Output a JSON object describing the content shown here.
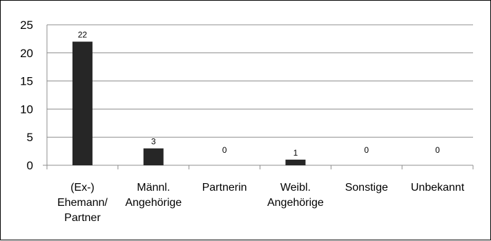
{
  "chart_data": {
    "type": "bar",
    "categories": [
      [
        "(Ex-)",
        "Ehemann/",
        "Partner"
      ],
      [
        "Männl.",
        "Angehörige"
      ],
      [
        "Partnerin"
      ],
      [
        "Weibl.",
        "Angehörige"
      ],
      [
        "Sonstige"
      ],
      [
        "Unbekannt"
      ]
    ],
    "values": [
      22,
      3,
      0,
      1,
      0,
      0
    ],
    "data_labels": [
      "22",
      "3",
      "0",
      "1",
      "0",
      "0"
    ],
    "yticks": [
      0,
      5,
      10,
      15,
      20,
      25
    ],
    "ylim": [
      0,
      25
    ],
    "title": "",
    "xlabel": "",
    "ylabel": "",
    "grid": true,
    "legend": "none",
    "bar_color": "#262626",
    "grid_color": "#8c8c8c"
  }
}
